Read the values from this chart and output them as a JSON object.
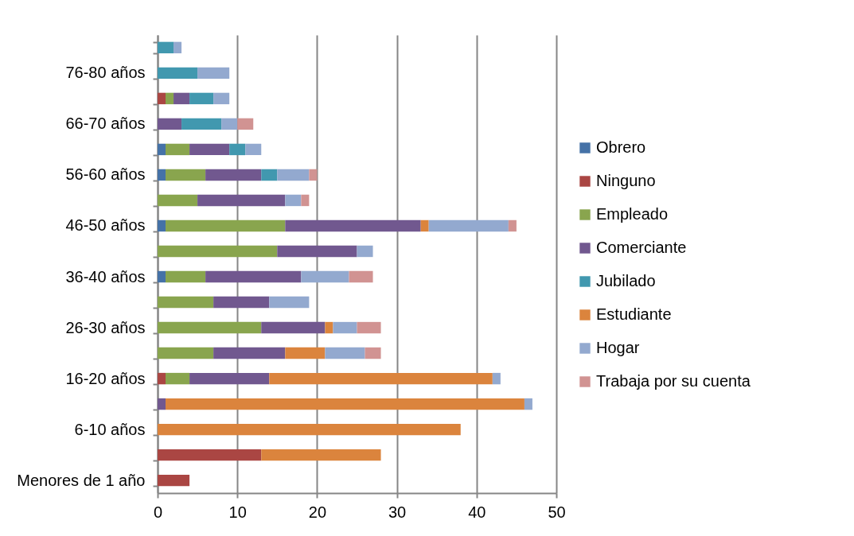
{
  "chart_data": {
    "type": "bar",
    "orientation": "horizontal",
    "stacked": true,
    "categories": [
      null,
      "76-80 años",
      null,
      "66-70 años",
      null,
      "56-60 años",
      null,
      "46-50 años",
      null,
      "36-40 años",
      null,
      "26-30 años",
      null,
      "16-20 años",
      null,
      "6-10 años",
      null,
      "Menores de 1 año"
    ],
    "series": [
      {
        "name": "Obrero",
        "color": "#4572a7",
        "values": [
          null,
          null,
          null,
          null,
          1,
          1,
          null,
          1,
          null,
          1,
          null,
          null,
          null,
          null,
          null,
          null,
          null,
          null
        ]
      },
      {
        "name": "Ninguno",
        "color": "#aa4643",
        "values": [
          null,
          null,
          1,
          null,
          null,
          null,
          null,
          null,
          null,
          null,
          null,
          null,
          null,
          1,
          null,
          null,
          13,
          4
        ]
      },
      {
        "name": "Empleado",
        "color": "#89a54e",
        "values": [
          null,
          null,
          1,
          null,
          3,
          5,
          5,
          15,
          15,
          5,
          7,
          13,
          7,
          3,
          null,
          null,
          null,
          null
        ]
      },
      {
        "name": "Comerciante",
        "color": "#71588f",
        "values": [
          null,
          null,
          2,
          3,
          5,
          7,
          11,
          17,
          10,
          12,
          7,
          8,
          9,
          10,
          1,
          null,
          null,
          null
        ]
      },
      {
        "name": "Jubilado",
        "color": "#4198af",
        "values": [
          2,
          5,
          3,
          5,
          2,
          2,
          null,
          null,
          null,
          null,
          null,
          null,
          null,
          null,
          null,
          null,
          null,
          null
        ]
      },
      {
        "name": "Estudiante",
        "color": "#db843d",
        "values": [
          null,
          null,
          null,
          null,
          null,
          null,
          null,
          1,
          null,
          null,
          null,
          1,
          5,
          28,
          45,
          38,
          15,
          null
        ]
      },
      {
        "name": "Hogar",
        "color": "#93a9cf",
        "values": [
          1,
          4,
          2,
          2,
          2,
          4,
          2,
          10,
          2,
          6,
          5,
          3,
          5,
          1,
          1,
          null,
          null,
          null
        ]
      },
      {
        "name": "Trabaja por su cuenta",
        "color": "#d19392",
        "values": [
          null,
          null,
          null,
          2,
          null,
          1,
          1,
          1,
          null,
          3,
          null,
          3,
          2,
          null,
          null,
          null,
          null,
          null
        ]
      }
    ],
    "xlim": [
      0,
      50
    ],
    "xticks": [
      0,
      10,
      20,
      30,
      40,
      50
    ],
    "grid": "x",
    "legend": "right"
  }
}
